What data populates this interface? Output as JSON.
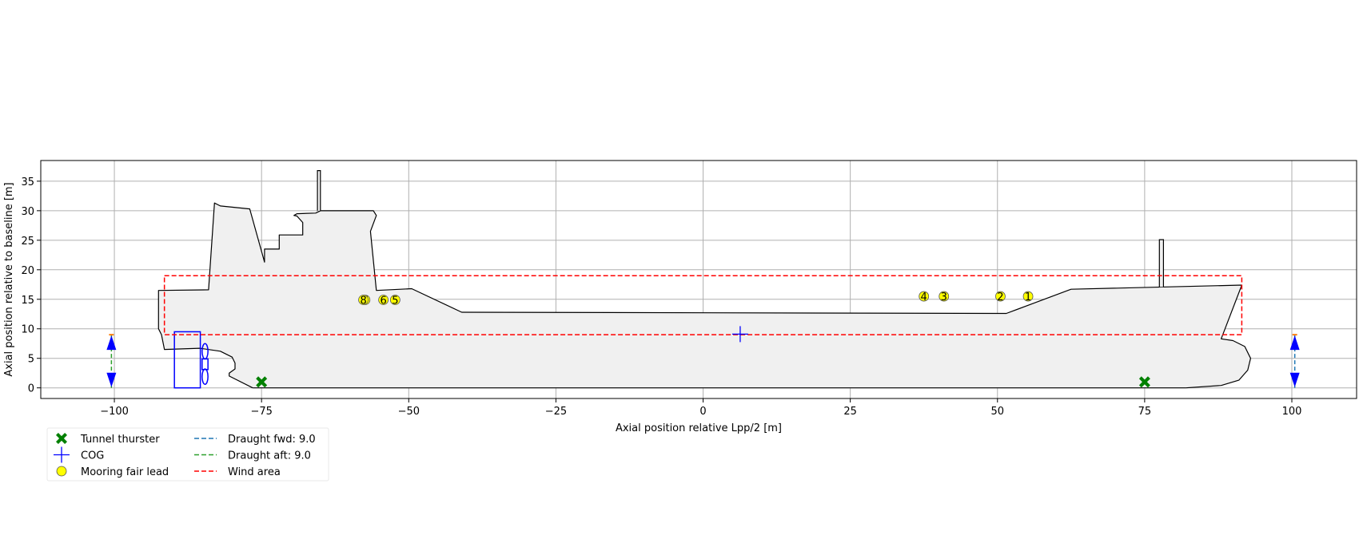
{
  "chart_data": {
    "type": "scatter",
    "title": "",
    "xlabel": "Axial position relative Lpp/2 [m]",
    "ylabel": "Axial position relative to baseline [m]",
    "xlim": [
      -112.5,
      111
    ],
    "ylim": [
      -1.8,
      38.5
    ],
    "xticks": [
      -100,
      -75,
      -50,
      -25,
      0,
      25,
      50,
      75,
      100
    ],
    "yticks": [
      0,
      5,
      10,
      15,
      20,
      25,
      30,
      35
    ],
    "grid": true,
    "legend_position": "below-left",
    "legend": [
      {
        "label": "Tunnel thurster",
        "marker": "x-filled",
        "color": "#008000"
      },
      {
        "label": "COG",
        "marker": "plus",
        "color": "#0000ff"
      },
      {
        "label": "Mooring fair lead",
        "marker": "circle",
        "color": "#ffff00"
      },
      {
        "label": "Draught fwd: 9.0",
        "marker": "dashed-line",
        "color": "#1f77b4"
      },
      {
        "label": "Draught aft: 9.0",
        "marker": "dashed-line",
        "color": "#2ca02c"
      },
      {
        "label": "Wind area",
        "marker": "dashed-line",
        "color": "#ff0000"
      }
    ],
    "tunnel_thrusters": [
      {
        "x": -75,
        "y": 1
      },
      {
        "x": 75,
        "y": 1
      }
    ],
    "cog": {
      "x": 6.3,
      "y": 9.1
    },
    "fair_leads": [
      {
        "label": "1",
        "x": 55.2,
        "y": 15.5
      },
      {
        "label": "2",
        "x": 50.5,
        "y": 15.5
      },
      {
        "label": "3",
        "x": 40.9,
        "y": 15.5
      },
      {
        "label": "4",
        "x": 37.5,
        "y": 15.5
      },
      {
        "label": "5",
        "x": -52.3,
        "y": 14.9
      },
      {
        "label": "6",
        "x": -54.3,
        "y": 14.9
      },
      {
        "label": "7",
        "x": -57.4,
        "y": 14.9
      },
      {
        "label": "8",
        "x": -57.7,
        "y": 14.9
      }
    ],
    "wind_area": {
      "x_min": -91.5,
      "x_max": 91.5,
      "y_min": 9,
      "y_max": 19
    },
    "draught_fwd": {
      "x": 100.5,
      "value": 9.0
    },
    "draught_aft": {
      "x": -100.5,
      "value": 9.0
    },
    "hull_outline": [
      [
        -76.5,
        0
      ],
      [
        -80.5,
        2
      ],
      [
        -80.5,
        2.5
      ],
      [
        -79.5,
        3.2
      ],
      [
        -79.5,
        4.2
      ],
      [
        -80,
        5.2
      ],
      [
        -82,
        6.2
      ],
      [
        -85.5,
        6.7
      ],
      [
        -91.5,
        6.5
      ],
      [
        -92,
        9
      ],
      [
        -92.5,
        10
      ],
      [
        -92.5,
        16.5
      ],
      [
        -84,
        16.6
      ],
      [
        -83,
        31.3
      ],
      [
        -82,
        30.8
      ],
      [
        -77,
        30.3
      ],
      [
        -74.5,
        21.3
      ],
      [
        -74.5,
        23.5
      ],
      [
        -72,
        23.5
      ],
      [
        -72,
        25.9
      ],
      [
        -68,
        25.9
      ],
      [
        -68,
        28
      ],
      [
        -69,
        29.1
      ],
      [
        -69.5,
        29.2
      ],
      [
        -69,
        29.5
      ],
      [
        -65.8,
        29.6
      ],
      [
        -65,
        30
      ],
      [
        -56,
        30
      ],
      [
        -55.5,
        29.2
      ],
      [
        -56.5,
        26.5
      ],
      [
        -55.5,
        16.5
      ],
      [
        -49.5,
        16.8
      ],
      [
        -41,
        12.8
      ],
      [
        51.5,
        12.6
      ],
      [
        62.5,
        16.7
      ],
      [
        91.5,
        17.4
      ],
      [
        88,
        8.3
      ],
      [
        90,
        8
      ],
      [
        92,
        7
      ],
      [
        93,
        5
      ],
      [
        92.5,
        3
      ],
      [
        91,
        1.3
      ],
      [
        88,
        0.4
      ],
      [
        82,
        0
      ]
    ],
    "stern_funnel": [
      [
        -65.5,
        30
      ],
      [
        -65.5,
        36.8
      ],
      [
        -65,
        36.8
      ],
      [
        -65,
        30
      ]
    ],
    "bow_mast": [
      [
        77.5,
        17.1
      ],
      [
        77.5,
        25.1
      ],
      [
        78.2,
        25.1
      ],
      [
        78.2,
        17.1
      ]
    ],
    "rudder": {
      "x_min": -89.8,
      "x_max": -85.4,
      "y_min": 0,
      "y_max": 9.5
    },
    "propeller_blades": [
      {
        "x": -84.6,
        "y": 6.2,
        "rx": 0.5,
        "ry": 1.3
      },
      {
        "x": -84.6,
        "y": 1.9,
        "rx": 0.5,
        "ry": 1.3
      }
    ],
    "propeller_hub": {
      "x_min": -85.1,
      "x_max": -84.1,
      "y_min": 3.1,
      "y_max": 4.9
    }
  }
}
